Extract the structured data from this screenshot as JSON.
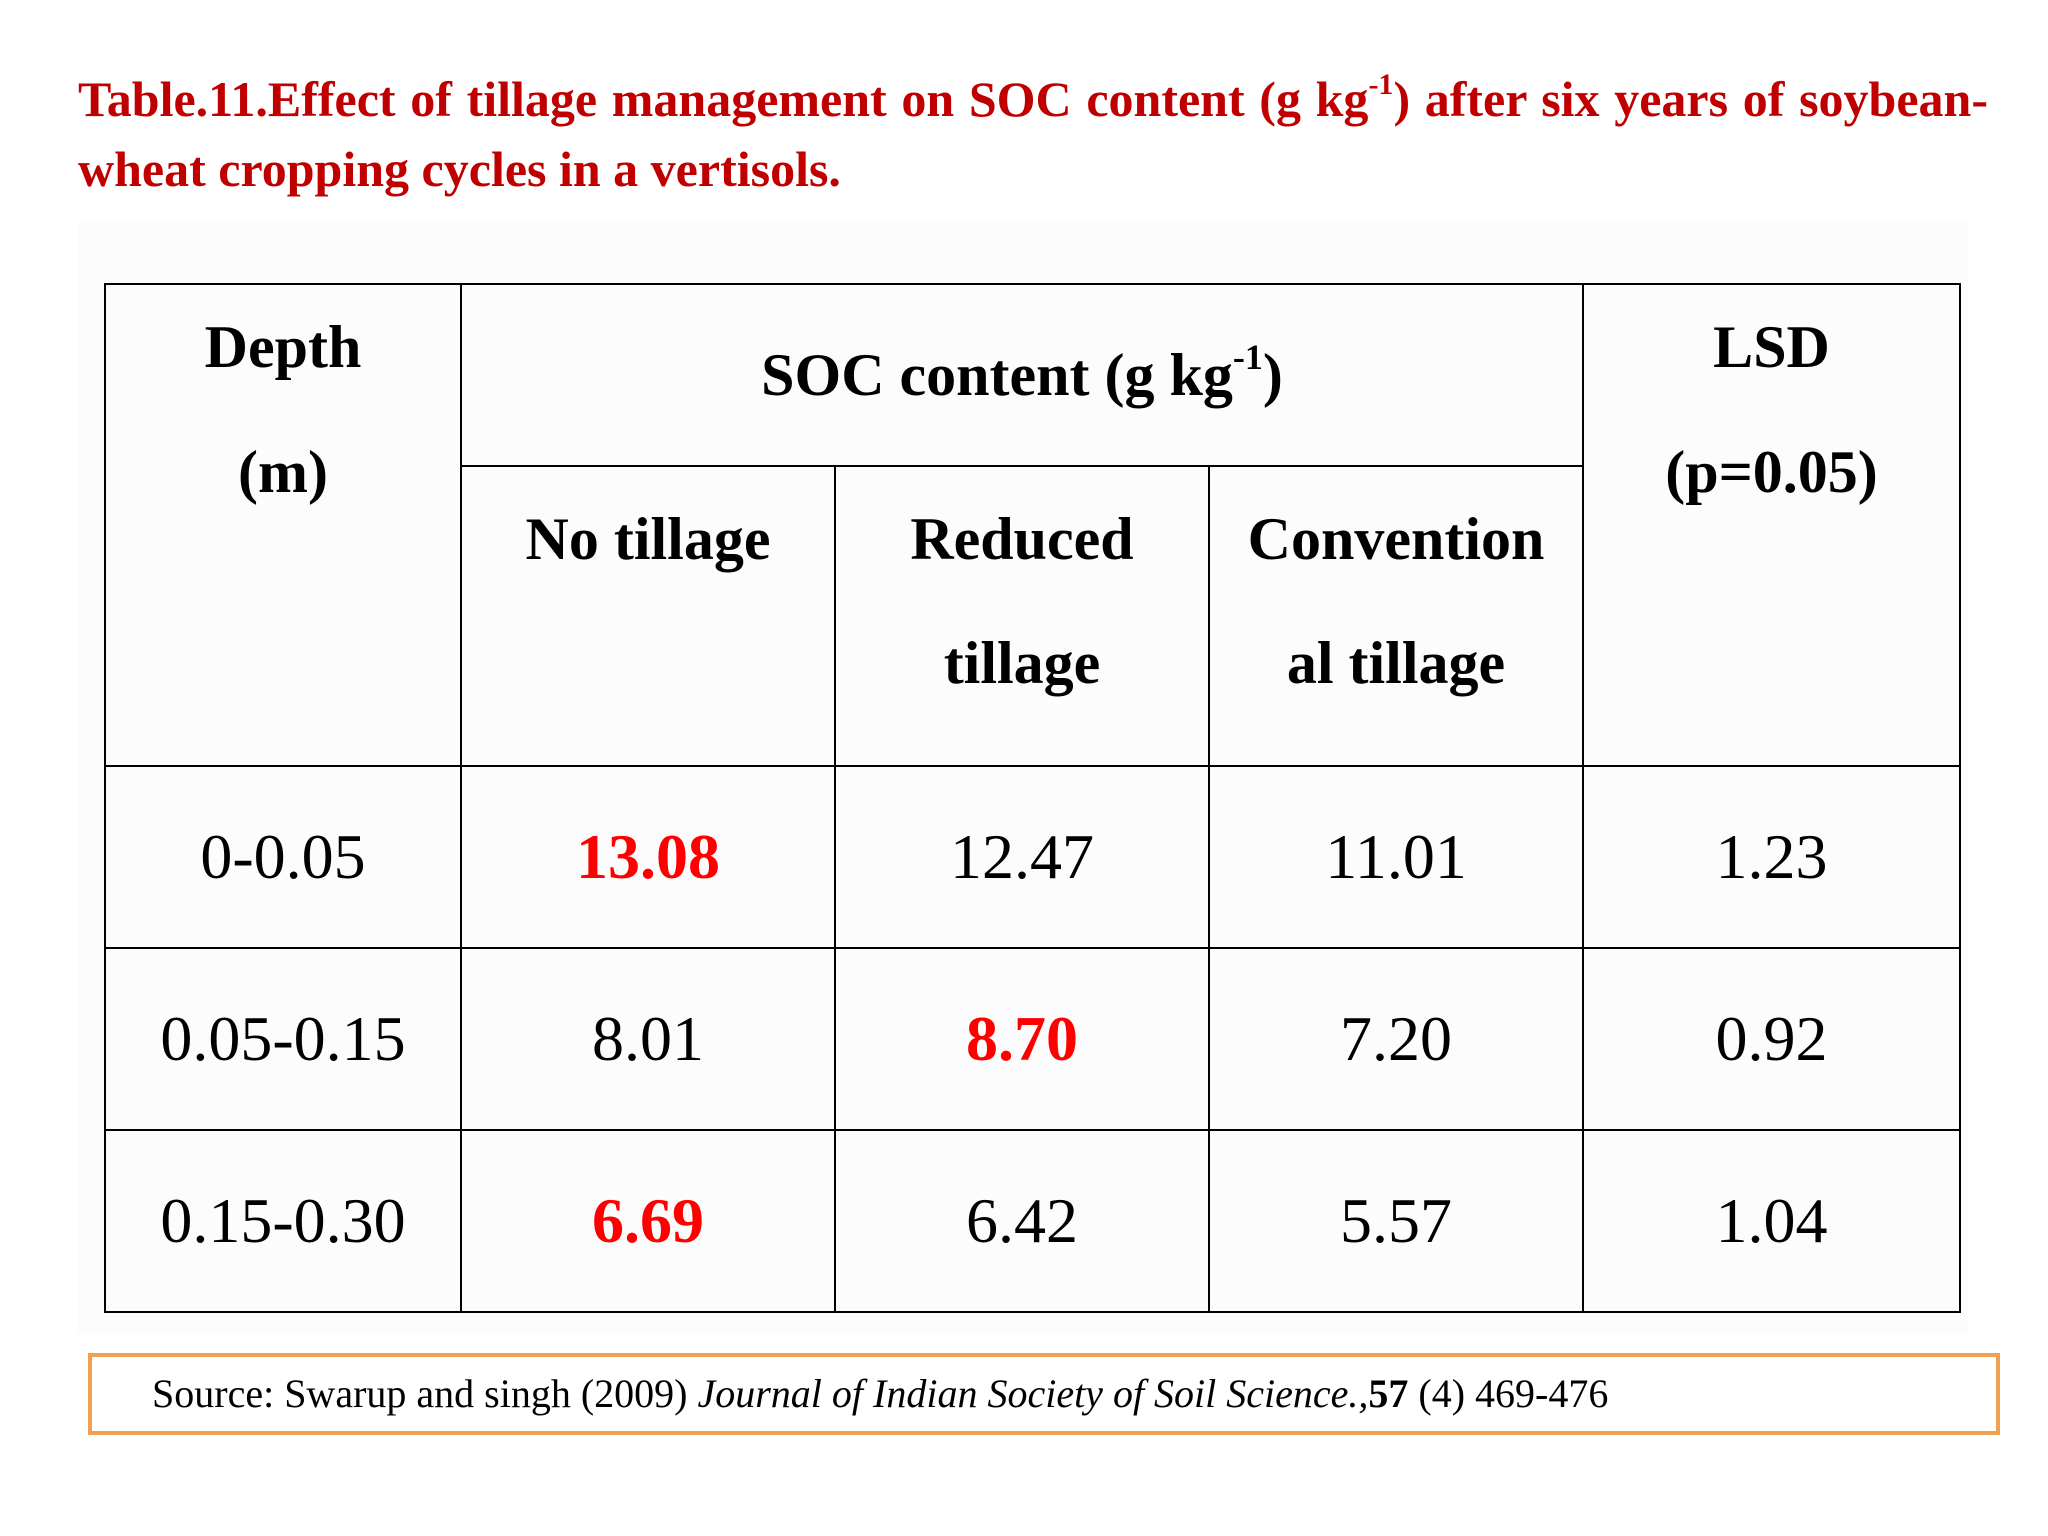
{
  "title": {
    "prefix": "Table.11.Effect of tillage management on SOC content (g kg",
    "sup": "-1",
    "suffix": ") after six years of soybean-wheat cropping cycles in a vertisols."
  },
  "table": {
    "headers": {
      "depth": "Depth",
      "depth_unit": "(m)",
      "soc_prefix": "SOC content (g kg",
      "soc_sup": "-1",
      "soc_suffix": ")",
      "lsd": "LSD",
      "lsd_sub": "(p=0.05)",
      "no_tillage": "No tillage",
      "reduced_1": "Reduced",
      "reduced_2": "tillage",
      "conventional_1": "Convention",
      "conventional_2": "al tillage"
    },
    "rows": [
      {
        "depth": "0-0.05",
        "no_tillage": "13.08",
        "reduced": "12.47",
        "conventional": "11.01",
        "lsd": "1.23"
      },
      {
        "depth": "0.05-0.15",
        "no_tillage": "8.01",
        "reduced": "8.70",
        "conventional": "7.20",
        "lsd": "0.92"
      },
      {
        "depth": "0.15-0.30",
        "no_tillage": "6.69",
        "reduced": "6.42",
        "conventional": "5.57",
        "lsd": "1.04"
      }
    ],
    "highlight_color": "#ff0000"
  },
  "source": {
    "prefix": "Source: Swarup and singh (2009) ",
    "journal": "Journal of Indian  Society of  Soil Science.,",
    "volume": "57",
    "rest": " (4) 469-476",
    "border_color": "#f0a050"
  }
}
